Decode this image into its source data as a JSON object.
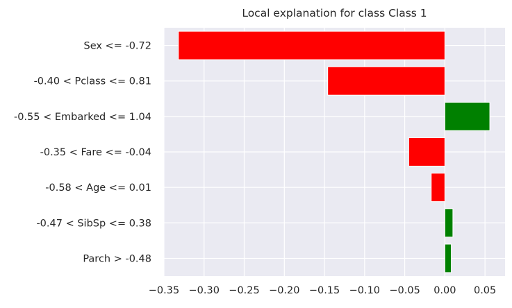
{
  "chart_data": {
    "type": "bar",
    "orientation": "horizontal",
    "title": "Local explanation for class Class 1",
    "xlabel": "",
    "ylabel": "",
    "categories": [
      "Sex <= -0.72",
      "-0.40 < Pclass <= 0.81",
      "-0.55 < Embarked <= 1.04",
      "-0.35 < Fare <= -0.04",
      "-0.58 < Age <= 0.01",
      "-0.47 < SibSp <= 0.38",
      "Parch > -0.48"
    ],
    "values": [
      -0.332,
      -0.146,
      0.056,
      -0.045,
      -0.017,
      0.01,
      0.008
    ],
    "xlim": [
      -0.35,
      0.075
    ],
    "xticks": [
      -0.35,
      -0.3,
      -0.25,
      -0.2,
      -0.15,
      -0.1,
      -0.05,
      0.0,
      0.05
    ],
    "xtick_labels": [
      "−0.35",
      "−0.30",
      "−0.25",
      "−0.20",
      "−0.15",
      "−0.10",
      "−0.05",
      "0.00",
      "0.05"
    ],
    "grid": true,
    "colors": {
      "positive": "#008000",
      "negative": "#ff0000",
      "background": "#eaeaf2",
      "grid": "#ffffff"
    }
  }
}
